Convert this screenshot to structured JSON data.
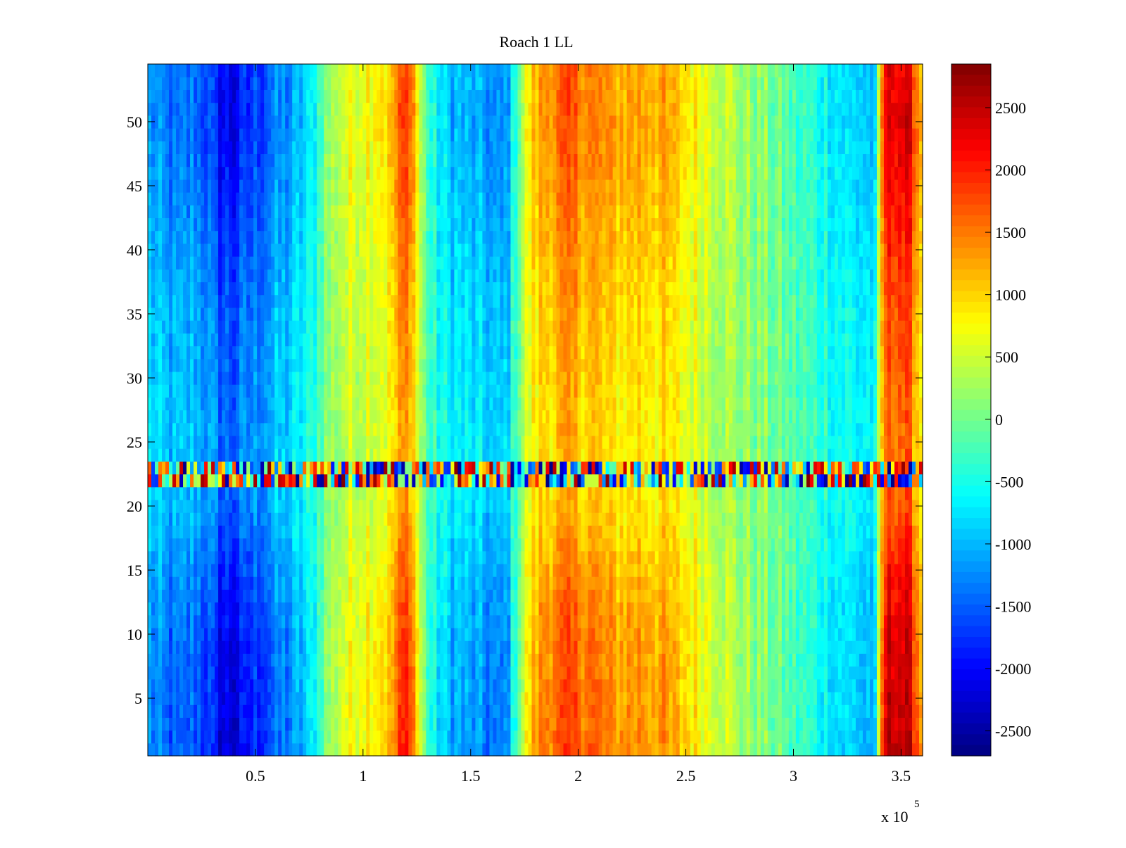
{
  "chart_data": {
    "type": "heatmap",
    "title": "Roach 1 LL",
    "xlabel": "",
    "ylabel": "",
    "x_multiplier_label": "x 10",
    "x_multiplier_exponent": "5",
    "xlim": [
      0,
      360000
    ],
    "ylim": [
      0.5,
      54.5
    ],
    "x_ticks": [
      0.5,
      1,
      1.5,
      2,
      2.5,
      3,
      3.5
    ],
    "x_tick_labels": [
      "0.5",
      "1",
      "1.5",
      "2",
      "2.5",
      "3",
      "3.5"
    ],
    "y_ticks": [
      5,
      10,
      15,
      20,
      25,
      30,
      35,
      40,
      45,
      50
    ],
    "y_tick_labels": [
      "5",
      "10",
      "15",
      "20",
      "25",
      "30",
      "35",
      "40",
      "45",
      "50"
    ],
    "colormap": "jet",
    "color_range": [
      -2700,
      2850
    ],
    "colorbar_ticks": [
      2500,
      2000,
      1500,
      1000,
      500,
      0,
      -500,
      -1000,
      -1500,
      -2000,
      -2500
    ],
    "colorbar_tick_labels": [
      "2500",
      "2000",
      "1500",
      "1000",
      "500",
      "0",
      "-500",
      "-1000",
      "-1500",
      "-2000",
      "-2500"
    ],
    "column_profile": {
      "x": [
        0,
        8000,
        15000,
        22000,
        28000,
        33000,
        40000,
        48000,
        52000,
        58000,
        64000,
        70000,
        76000,
        82000,
        90000,
        98000,
        105000,
        112000,
        118000,
        122000,
        127000,
        132000,
        140000,
        150000,
        158000,
        164000,
        168000,
        172000,
        178000,
        185000,
        195000,
        205000,
        215000,
        225000,
        235000,
        245000,
        255000,
        265000,
        275000,
        285000,
        295000,
        305000,
        315000,
        322000,
        330000,
        338000,
        342000,
        348000,
        355000,
        360000
      ],
      "values": [
        -900,
        -1150,
        -1200,
        -1100,
        -1300,
        -1600,
        -1700,
        -1450,
        -1300,
        -1150,
        -1050,
        -850,
        -600,
        50,
        450,
        600,
        750,
        800,
        1400,
        1500,
        250,
        -450,
        -750,
        -900,
        -1000,
        -1150,
        -800,
        0,
        800,
        1150,
        1300,
        1250,
        1000,
        1050,
        1050,
        850,
        650,
        450,
        200,
        100,
        -100,
        -300,
        -450,
        -600,
        -700,
        -800,
        1700,
        2000,
        1700,
        900
      ],
      "row_scale": {
        "rows": [
          1,
          5,
          10,
          15,
          20,
          24,
          25,
          30,
          35,
          40,
          45,
          50,
          54
        ],
        "factor": [
          1.35,
          1.3,
          1.25,
          1.1,
          0.9,
          0.85,
          0.85,
          0.9,
          0.95,
          1.05,
          1.15,
          1.25,
          1.2
        ]
      }
    },
    "outlier_rows": [
      22,
      23
    ]
  }
}
